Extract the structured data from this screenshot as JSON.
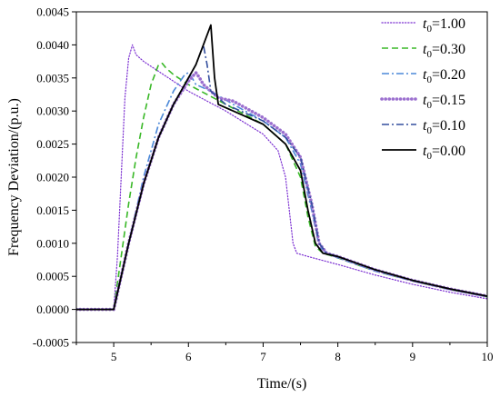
{
  "chart_data": {
    "type": "line",
    "title": "",
    "xlabel": "Time/(s)",
    "ylabel": "Frequency Deviation/(p.u.)",
    "xlim": [
      4.5,
      10
    ],
    "ylim": [
      -0.0005,
      0.0045
    ],
    "x_ticks": [
      "5",
      "6",
      "7",
      "8",
      "9",
      "10"
    ],
    "y_ticks": [
      "-0.0005",
      "0.0000",
      "0.0005",
      "0.0010",
      "0.0015",
      "0.0020",
      "0.0025",
      "0.0030",
      "0.0035",
      "0.0040",
      "0.0045"
    ],
    "grid": false,
    "legend_position": "top-right",
    "series": [
      {
        "name": "t0=1.00",
        "label_main": "t",
        "label_sub": "0",
        "label_value": "=1.00",
        "color": "#7b2fd1",
        "style": "dotted",
        "points": [
          [
            4.5,
            0
          ],
          [
            5.0,
            0
          ],
          [
            5.05,
            0.0008
          ],
          [
            5.1,
            0.002
          ],
          [
            5.15,
            0.0032
          ],
          [
            5.2,
            0.0038
          ],
          [
            5.25,
            0.004
          ],
          [
            5.3,
            0.00385
          ],
          [
            5.4,
            0.00375
          ],
          [
            5.6,
            0.0036
          ],
          [
            5.8,
            0.00345
          ],
          [
            6.0,
            0.0033
          ],
          [
            6.5,
            0.003
          ],
          [
            7.0,
            0.00265
          ],
          [
            7.2,
            0.0024
          ],
          [
            7.3,
            0.002
          ],
          [
            7.35,
            0.0015
          ],
          [
            7.4,
            0.001
          ],
          [
            7.45,
            0.00085
          ],
          [
            7.6,
            0.0008
          ],
          [
            8.0,
            0.00068
          ],
          [
            8.5,
            0.00052
          ],
          [
            9.0,
            0.00038
          ],
          [
            9.5,
            0.00026
          ],
          [
            10.0,
            0.00016
          ]
        ]
      },
      {
        "name": "t0=0.30",
        "label_main": "t",
        "label_sub": "0",
        "label_value": "=0.30",
        "color": "#39b827",
        "style": "dashed",
        "points": [
          [
            4.5,
            0
          ],
          [
            5.0,
            0
          ],
          [
            5.1,
            0.0008
          ],
          [
            5.2,
            0.0016
          ],
          [
            5.3,
            0.0023
          ],
          [
            5.4,
            0.0029
          ],
          [
            5.5,
            0.0034
          ],
          [
            5.6,
            0.0037
          ],
          [
            5.65,
            0.00372
          ],
          [
            5.7,
            0.00365
          ],
          [
            5.8,
            0.00355
          ],
          [
            6.0,
            0.0034
          ],
          [
            6.5,
            0.0031
          ],
          [
            7.0,
            0.0028
          ],
          [
            7.3,
            0.0025
          ],
          [
            7.5,
            0.002
          ],
          [
            7.6,
            0.0014
          ],
          [
            7.7,
            0.00095
          ],
          [
            7.8,
            0.00085
          ],
          [
            8.0,
            0.00078
          ],
          [
            8.5,
            0.00058
          ],
          [
            9.0,
            0.00043
          ],
          [
            9.5,
            0.0003
          ],
          [
            10.0,
            0.00019
          ]
        ]
      },
      {
        "name": "t0=0.20",
        "label_main": "t",
        "label_sub": "0",
        "label_value": "=0.20",
        "color": "#4b88d8",
        "style": "dashdot",
        "points": [
          [
            4.5,
            0
          ],
          [
            5.0,
            0
          ],
          [
            5.2,
            0.001
          ],
          [
            5.4,
            0.002
          ],
          [
            5.6,
            0.0028
          ],
          [
            5.8,
            0.0033
          ],
          [
            5.95,
            0.00355
          ],
          [
            6.0,
            0.00358
          ],
          [
            6.05,
            0.0035
          ],
          [
            6.1,
            0.0034
          ],
          [
            6.3,
            0.0033
          ],
          [
            6.6,
            0.0031
          ],
          [
            7.0,
            0.00285
          ],
          [
            7.3,
            0.0026
          ],
          [
            7.5,
            0.0022
          ],
          [
            7.65,
            0.0015
          ],
          [
            7.75,
            0.00095
          ],
          [
            7.85,
            0.00085
          ],
          [
            8.0,
            0.00078
          ],
          [
            8.5,
            0.00058
          ],
          [
            9.0,
            0.00043
          ],
          [
            9.5,
            0.0003
          ],
          [
            10.0,
            0.00019
          ]
        ]
      },
      {
        "name": "t0=0.15",
        "label_main": "t",
        "label_sub": "0",
        "label_value": "=0.15",
        "color": "#9b6fcf",
        "style": "thick-dotted",
        "points": [
          [
            4.5,
            0
          ],
          [
            5.0,
            0
          ],
          [
            5.2,
            0.001
          ],
          [
            5.4,
            0.0019
          ],
          [
            5.6,
            0.0026
          ],
          [
            5.8,
            0.0031
          ],
          [
            6.0,
            0.00345
          ],
          [
            6.1,
            0.00358
          ],
          [
            6.15,
            0.0035
          ],
          [
            6.2,
            0.0034
          ],
          [
            6.4,
            0.0032
          ],
          [
            6.6,
            0.00315
          ],
          [
            7.0,
            0.0029
          ],
          [
            7.3,
            0.00265
          ],
          [
            7.5,
            0.0023
          ],
          [
            7.65,
            0.0016
          ],
          [
            7.75,
            0.001
          ],
          [
            7.85,
            0.00085
          ],
          [
            8.0,
            0.0008
          ],
          [
            8.5,
            0.0006
          ],
          [
            9.0,
            0.00044
          ],
          [
            9.5,
            0.00031
          ],
          [
            10.0,
            0.0002
          ]
        ]
      },
      {
        "name": "t0=0.10",
        "label_main": "t",
        "label_sub": "0",
        "label_value": "=0.10",
        "color": "#334f9e",
        "style": "dashdot",
        "points": [
          [
            4.5,
            0
          ],
          [
            5.0,
            0
          ],
          [
            5.2,
            0.001
          ],
          [
            5.4,
            0.0019
          ],
          [
            5.6,
            0.0026
          ],
          [
            5.8,
            0.0031
          ],
          [
            6.0,
            0.0035
          ],
          [
            6.1,
            0.0037
          ],
          [
            6.2,
            0.004
          ],
          [
            6.25,
            0.0037
          ],
          [
            6.3,
            0.0033
          ],
          [
            6.5,
            0.0031
          ],
          [
            7.0,
            0.00285
          ],
          [
            7.3,
            0.0026
          ],
          [
            7.5,
            0.0023
          ],
          [
            7.65,
            0.0016
          ],
          [
            7.75,
            0.001
          ],
          [
            7.85,
            0.00085
          ],
          [
            8.0,
            0.0008
          ],
          [
            8.5,
            0.0006
          ],
          [
            9.0,
            0.00044
          ],
          [
            9.5,
            0.00031
          ],
          [
            10.0,
            0.0002
          ]
        ]
      },
      {
        "name": "t0=0.00",
        "label_main": "t",
        "label_sub": "0",
        "label_value": "=0.00",
        "color": "#000000",
        "style": "solid",
        "points": [
          [
            4.5,
            0
          ],
          [
            5.0,
            0
          ],
          [
            5.2,
            0.001
          ],
          [
            5.4,
            0.0019
          ],
          [
            5.6,
            0.0026
          ],
          [
            5.8,
            0.0031
          ],
          [
            6.0,
            0.0035
          ],
          [
            6.1,
            0.0037
          ],
          [
            6.2,
            0.004
          ],
          [
            6.3,
            0.0043
          ],
          [
            6.35,
            0.0035
          ],
          [
            6.4,
            0.0031
          ],
          [
            6.6,
            0.003
          ],
          [
            7.0,
            0.0028
          ],
          [
            7.3,
            0.0025
          ],
          [
            7.5,
            0.0021
          ],
          [
            7.6,
            0.0015
          ],
          [
            7.7,
            0.001
          ],
          [
            7.8,
            0.00085
          ],
          [
            8.0,
            0.0008
          ],
          [
            8.5,
            0.0006
          ],
          [
            9.0,
            0.00044
          ],
          [
            9.5,
            0.00031
          ],
          [
            10.0,
            0.0002
          ]
        ]
      }
    ]
  }
}
